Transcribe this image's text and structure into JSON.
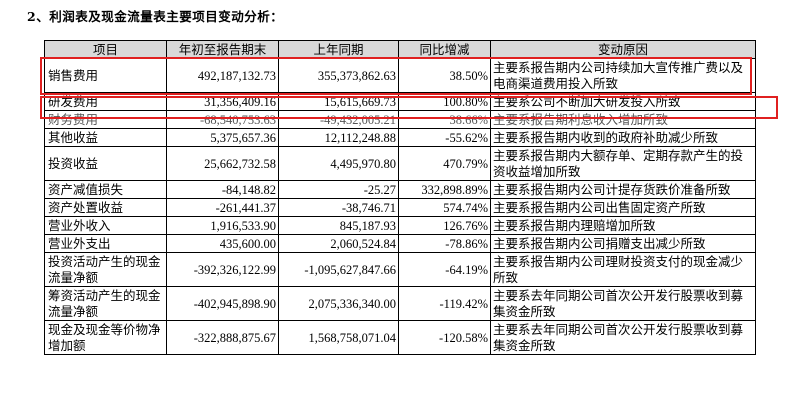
{
  "title": "2、利润表及现金流量表主要项目变动分析：",
  "headers": [
    "项目",
    "年初至报告期末",
    "上年同期",
    "同比增减",
    "变动原因"
  ],
  "rows": [
    {
      "item": "销售费用",
      "current": "492,187,132.73",
      "prior": "355,373,862.63",
      "change": "38.50%",
      "reason": "主要系报告期内公司持续加大宣传推广费以及电商渠道费用投入所致"
    },
    {
      "item": "研发费用",
      "current": "31,356,409.16",
      "prior": "15,615,669.73",
      "change": "100.80%",
      "reason": "主要系公司不断加大研发投入所致"
    },
    {
      "item": "财务费用",
      "current": "-68,540,753.63",
      "prior": "-49,432,005.21",
      "change": "38.66%",
      "reason": "主要系报告期利息收入增加所致"
    },
    {
      "item": "其他收益",
      "current": "5,375,657.36",
      "prior": "12,112,248.88",
      "change": "-55.62%",
      "reason": "主要系报告期内收到的政府补助减少所致"
    },
    {
      "item": "投资收益",
      "current": "25,662,732.58",
      "prior": "4,495,970.80",
      "change": "470.79%",
      "reason": "主要系报告期内大额存单、定期存款产生的投资收益增加所致"
    },
    {
      "item": "资产减值损失",
      "current": "-84,148.82",
      "prior": "-25.27",
      "change": "332,898.89%",
      "reason": "主要系报告期内公司计提存货跌价准备所致"
    },
    {
      "item": "资产处置收益",
      "current": "-261,441.37",
      "prior": "-38,746.71",
      "change": "574.74%",
      "reason": "主要系报告期内公司出售固定资产所致"
    },
    {
      "item": "营业外收入",
      "current": "1,916,533.90",
      "prior": "845,187.93",
      "change": "126.76%",
      "reason": "主要系报告期内理赔增加所致"
    },
    {
      "item": "营业外支出",
      "current": "435,600.00",
      "prior": "2,060,524.84",
      "change": "-78.86%",
      "reason": "主要系报告期内公司捐赠支出减少所致"
    },
    {
      "item": "投资活动产生的现金流量净额",
      "current": "-392,326,122.99",
      "prior": "-1,095,627,847.66",
      "change": "-64.19%",
      "reason": "主要系报告期内公司理财投资支付的现金减少所致"
    },
    {
      "item": "筹资活动产生的现金流量净额",
      "current": "-402,945,898.90",
      "prior": "2,075,336,340.00",
      "change": "-119.42%",
      "reason": "主要系去年同期公司首次公开发行股票收到募集资金所致"
    },
    {
      "item": "现金及现金等价物净增加额",
      "current": "-322,888,875.67",
      "prior": "1,568,758,071.04",
      "change": "-120.58%",
      "reason": "主要系去年同期公司首次公开发行股票收到募集资金所致"
    }
  ],
  "highlight_color": "#e02020"
}
